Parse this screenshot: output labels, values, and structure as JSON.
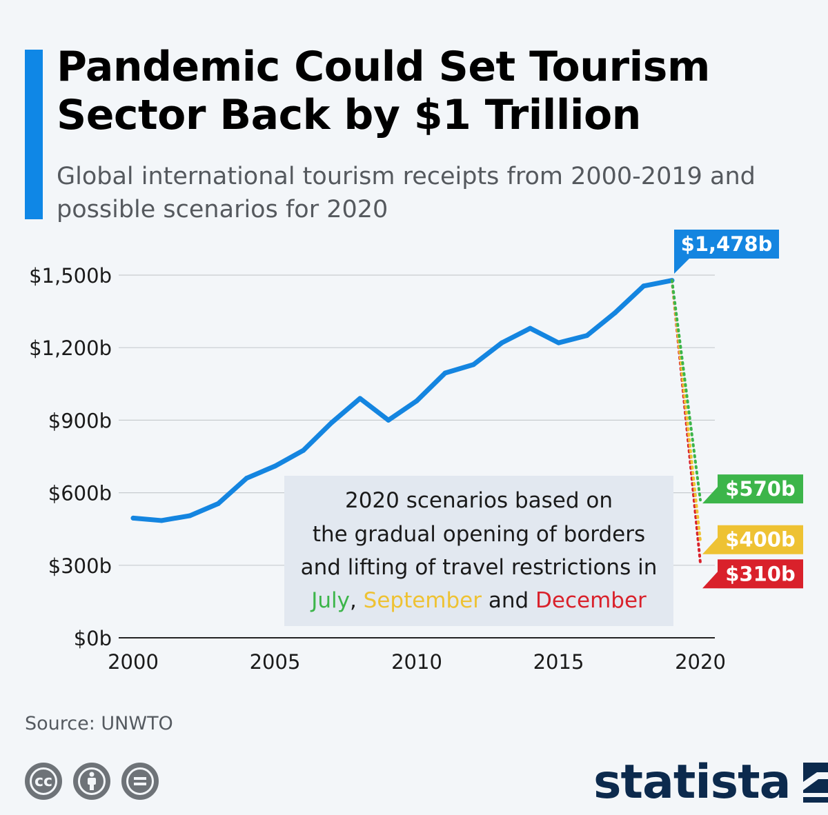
{
  "header": {
    "title": "Pandemic Could Set Tourism Sector Back by $1 Trillion",
    "subtitle": "Global international tourism receipts from 2000-2019 and possible scenarios for 2020"
  },
  "colors": {
    "accent": "#0f87e6",
    "line": "#1485e0",
    "july": "#3cb54a",
    "september": "#eec233",
    "december": "#d9212b",
    "grid": "#c7cbcf",
    "note_bg": "#e2e8f0"
  },
  "chart_data": {
    "type": "line",
    "title": "",
    "xlabel": "",
    "ylabel": "",
    "x": [
      2000,
      2001,
      2002,
      2003,
      2004,
      2005,
      2006,
      2007,
      2008,
      2009,
      2010,
      2011,
      2012,
      2013,
      2014,
      2015,
      2016,
      2017,
      2018,
      2019
    ],
    "series": [
      {
        "values": [
          495,
          485,
          505,
          555,
          660,
          710,
          775,
          890,
          990,
          900,
          980,
          1095,
          1130,
          1220,
          1280,
          1220,
          1250,
          1345,
          1455,
          1478
        ]
      }
    ],
    "scenarios": [
      {
        "month": "July",
        "value": 570,
        "label": "$570b",
        "color": "#3cb54a"
      },
      {
        "month": "September",
        "value": 400,
        "label": "$400b",
        "color": "#eec233"
      },
      {
        "month": "December",
        "value": 310,
        "label": "$310b",
        "color": "#d9212b"
      }
    ],
    "scenario_year": 2020,
    "peak_label": "$1,478b",
    "xlim": [
      2000,
      2020
    ],
    "ylim": [
      0,
      1500
    ],
    "yticks": [
      0,
      300,
      600,
      900,
      1200,
      1500
    ],
    "ytick_labels": [
      "$0b",
      "$300b",
      "$600b",
      "$900b",
      "$1,200b",
      "$1,500b"
    ],
    "xticks": [
      2000,
      2005,
      2010,
      2015,
      2020
    ],
    "xtick_labels": [
      "2000",
      "2005",
      "2010",
      "2015",
      "2020"
    ],
    "grid": true,
    "note": {
      "line1": "2020 scenarios based on",
      "line2": "the gradual opening of borders",
      "line3": "and lifting of travel restrictions in",
      "july": "July",
      "sep1": ", ",
      "september": "September",
      "and": " and ",
      "december": "December"
    }
  },
  "footer": {
    "source": "Source: UNWTO",
    "logo_text": "statista",
    "license_icons": [
      "cc-icon",
      "by-icon",
      "nd-icon"
    ]
  }
}
